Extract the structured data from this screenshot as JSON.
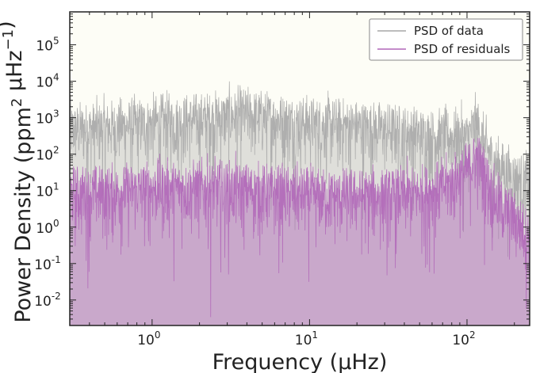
{
  "chart_data": {
    "type": "line",
    "title": "",
    "xlabel": "Frequency (μHz)",
    "ylabel": "Power Density (ppm² μHz⁻¹)",
    "xscale": "log",
    "yscale": "log",
    "xlim": [
      0.3,
      250
    ],
    "ylim": [
      0.002,
      800000
    ],
    "x_ticks": [
      {
        "value": 1,
        "label": "10^0"
      },
      {
        "value": 10,
        "label": "10^1"
      },
      {
        "value": 100,
        "label": "10^2"
      }
    ],
    "y_ticks": [
      {
        "value": 0.01,
        "label": "10^-2"
      },
      {
        "value": 0.1,
        "label": "10^-1"
      },
      {
        "value": 1,
        "label": "10^0"
      },
      {
        "value": 10,
        "label": "10^1"
      },
      {
        "value": 100,
        "label": "10^2"
      },
      {
        "value": 1000,
        "label": "10^3"
      },
      {
        "value": 10000,
        "label": "10^4"
      },
      {
        "value": 100000,
        "label": "10^5"
      }
    ],
    "legend_position": "top-right",
    "grid": false,
    "background": "#fdfdf6",
    "series": [
      {
        "name": "PSD of data",
        "color": "#a7a7a7",
        "approx_envelope": {
          "x": [
            0.3,
            0.5,
            1,
            2,
            4,
            10,
            20,
            40,
            70,
            100,
            115,
            130,
            150,
            200,
            250
          ],
          "y_median": [
            800,
            900,
            1200,
            1500,
            2000,
            1200,
            1000,
            700,
            500,
            500,
            1200,
            300,
            100,
            40,
            30
          ]
        }
      },
      {
        "name": "PSD of residuals",
        "color": "#b066b8",
        "approx_envelope": {
          "x": [
            0.3,
            0.5,
            1,
            2,
            4,
            10,
            20,
            40,
            70,
            100,
            115,
            130,
            150,
            200,
            250
          ],
          "y_median": [
            15,
            15,
            20,
            20,
            18,
            12,
            12,
            12,
            20,
            60,
            150,
            50,
            10,
            3,
            1
          ]
        }
      }
    ]
  }
}
